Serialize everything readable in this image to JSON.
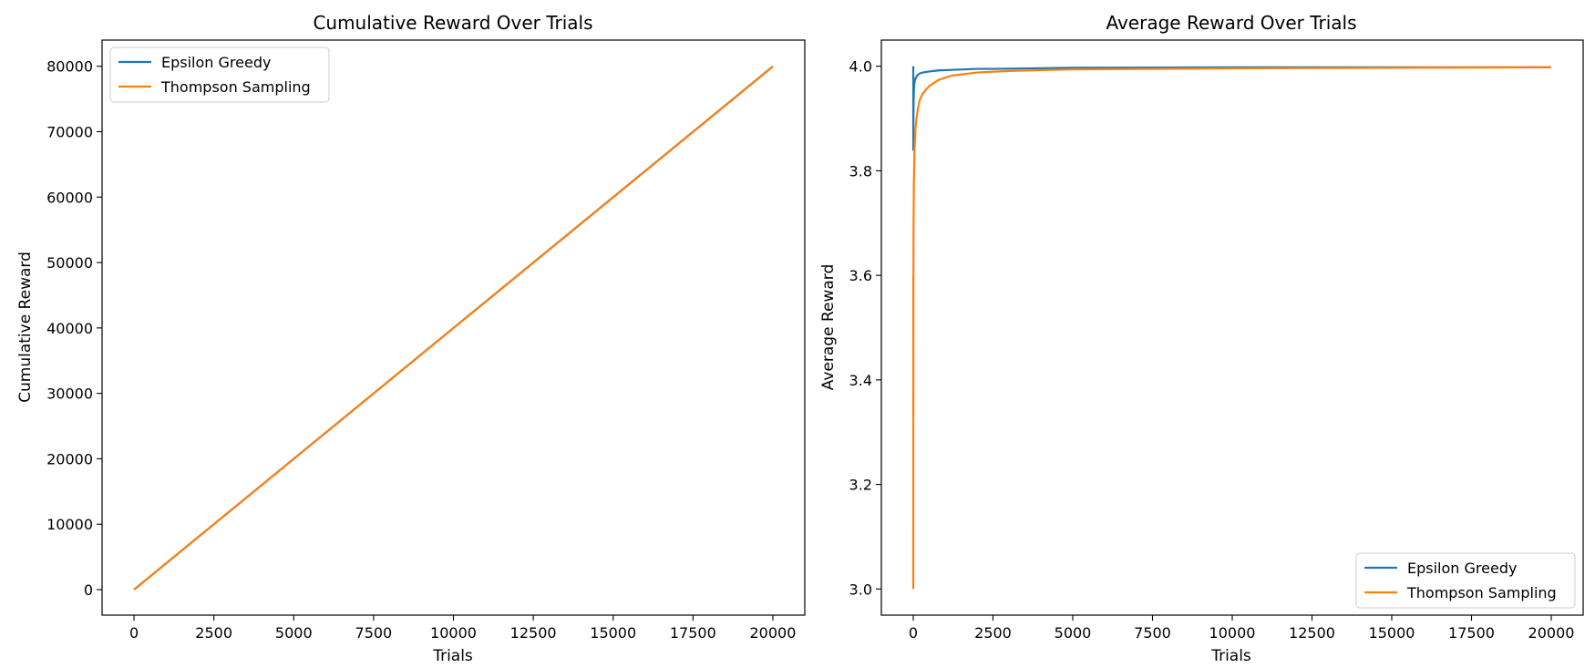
{
  "chart_data": [
    {
      "type": "line",
      "title": "Cumulative Reward Over Trials",
      "xlabel": "Trials",
      "ylabel": "Cumulative Reward",
      "xlim": [
        -1000,
        21000
      ],
      "ylim": [
        -3900,
        84000
      ],
      "xticks": [
        0,
        2500,
        5000,
        7500,
        10000,
        12500,
        15000,
        17500,
        20000
      ],
      "yticks": [
        0,
        10000,
        20000,
        30000,
        40000,
        50000,
        60000,
        70000,
        80000
      ],
      "grid": false,
      "legend_position": "upper-left",
      "series": [
        {
          "name": "Epsilon Greedy",
          "color": "#1f77b4",
          "x": [
            0,
            20000
          ],
          "y": [
            0,
            79980
          ]
        },
        {
          "name": "Thompson Sampling",
          "color": "#ff7f0e",
          "x": [
            0,
            20000
          ],
          "y": [
            0,
            79950
          ]
        }
      ]
    },
    {
      "type": "line",
      "title": "Average Reward Over Trials",
      "xlabel": "Trials",
      "ylabel": "Average Reward",
      "xlim": [
        -1000,
        21000
      ],
      "ylim": [
        2.95,
        4.05
      ],
      "xticks": [
        0,
        2500,
        5000,
        7500,
        10000,
        12500,
        15000,
        17500,
        20000
      ],
      "yticks": [
        3.0,
        3.2,
        3.4,
        3.6,
        3.8,
        4.0
      ],
      "grid": false,
      "legend_position": "lower-right",
      "series": [
        {
          "name": "Epsilon Greedy",
          "color": "#1f77b4",
          "x": [
            1,
            2,
            5,
            10,
            20,
            30,
            50,
            80,
            120,
            200,
            300,
            500,
            800,
            1200,
            2000,
            2500,
            5000,
            10000,
            15000,
            20000
          ],
          "y": [
            4.0,
            3.84,
            3.9,
            3.93,
            3.955,
            3.965,
            3.972,
            3.978,
            3.982,
            3.986,
            3.988,
            3.99,
            3.992,
            3.993,
            3.995,
            3.995,
            3.997,
            3.998,
            3.998,
            3.998
          ]
        },
        {
          "name": "Thompson Sampling",
          "color": "#ff7f0e",
          "x": [
            1,
            2,
            3,
            4,
            6,
            10,
            20,
            40,
            70,
            100,
            150,
            200,
            300,
            500,
            800,
            1200,
            2000,
            3000,
            5000,
            10000,
            15000,
            20000
          ],
          "y": [
            3.0,
            3.4,
            3.6,
            3.33,
            3.6,
            3.7,
            3.78,
            3.84,
            3.88,
            3.9,
            3.92,
            3.935,
            3.948,
            3.962,
            3.974,
            3.982,
            3.988,
            3.991,
            3.994,
            3.996,
            3.997,
            3.998
          ]
        }
      ]
    }
  ]
}
